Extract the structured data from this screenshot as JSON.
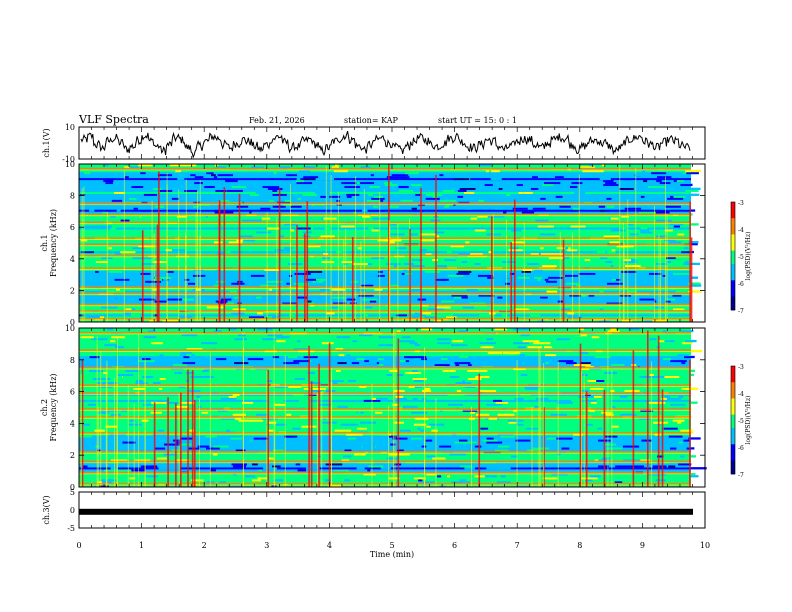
{
  "header": {
    "title": "VLF Spectra",
    "date": "Feb. 21, 2026",
    "station": "station= KAP",
    "start": "start  UT =   15: 0  : 1"
  },
  "colors": {
    "colormap": [
      "#00008b",
      "#0000ff",
      "#00bfff",
      "#00ff80",
      "#ffff00",
      "#ff8000",
      "#ff0000",
      "#ffffff"
    ]
  },
  "chart_data": [
    {
      "type": "line",
      "name": "ch1-waveform",
      "ylabel": "ch.1(V)",
      "ylim": [
        -10,
        10
      ],
      "yticks": [
        "10",
        "-10"
      ],
      "xlim": [
        0,
        10
      ],
      "values": [
        2,
        4,
        -1,
        -3,
        1,
        3,
        0,
        -4,
        -2,
        2,
        5,
        1,
        -2,
        -5,
        -1,
        3,
        2,
        -3,
        -6,
        -2,
        1,
        4,
        3,
        -1,
        -3,
        0,
        2,
        1,
        -2,
        -4,
        -1,
        3,
        4,
        0,
        -3,
        -2,
        1,
        2,
        -1,
        -5,
        -3,
        1,
        3,
        5,
        2,
        -2,
        -4,
        -1,
        2,
        3,
        0,
        -3,
        -5,
        -2,
        1,
        3,
        2,
        -1,
        -2,
        0,
        3,
        4,
        1,
        -2,
        -3,
        -1,
        2,
        1,
        -2,
        -4,
        -2,
        1,
        3,
        2,
        -1,
        -3,
        0,
        2,
        4,
        3,
        -1,
        -4,
        -2,
        1,
        2,
        0,
        -2,
        -5,
        -3,
        1,
        3,
        4,
        1,
        -1,
        -3,
        0,
        2,
        1,
        -2,
        -3
      ]
    },
    {
      "type": "heatmap",
      "name": "ch1-spectrogram",
      "ylabel": "ch.1\nFrequency (kHz)",
      "ylim": [
        0,
        10
      ],
      "yticks": [
        "0",
        "2",
        "4",
        "6",
        "8",
        "10"
      ],
      "xlim": [
        0,
        10
      ],
      "colorbar": {
        "label": "log(PSD)(V²/Hz)",
        "range": [
          -7,
          -3
        ],
        "ticks": [
          "-3",
          "-4",
          "-5",
          "-6",
          "-7"
        ]
      },
      "bright_bands_khz": [
        0.2,
        0.7,
        1.1,
        1.8,
        2.2,
        3.4,
        4.2,
        4.9,
        5.3,
        6.3,
        6.8,
        7.5,
        9.7
      ],
      "dark_bands_khz": [
        7.2,
        7.8,
        8.6,
        9.2,
        3.0,
        2.6,
        1.4
      ]
    },
    {
      "type": "heatmap",
      "name": "ch2-spectrogram",
      "ylabel": "ch.2\nFrequency (kHz)",
      "ylim": [
        0,
        10
      ],
      "yticks": [
        "0",
        "2",
        "4",
        "6",
        "8",
        "10"
      ],
      "xlim": [
        0,
        10
      ],
      "colorbar": {
        "label": "log(PSD)(V²/Hz)",
        "range": [
          -7,
          -3
        ],
        "ticks": [
          "-3",
          "-4",
          "-5",
          "-6",
          "-7"
        ]
      },
      "bright_bands_khz": [
        0.2,
        0.9,
        1.6,
        2.2,
        3.4,
        4.4,
        4.9,
        5.9,
        6.4,
        7.5,
        8.6,
        9.7
      ],
      "dark_bands_khz": [
        2.6,
        3.0,
        1.2,
        8.0
      ]
    },
    {
      "type": "line",
      "name": "ch3-signal",
      "ylabel": "ch.3(V)",
      "ylim": [
        -5,
        5
      ],
      "yticks": [
        "5",
        "0",
        "-5"
      ],
      "xlim": [
        0,
        10
      ],
      "constant_value": -0.5,
      "xlabel": "Time (min)",
      "xticks": [
        "0",
        "1",
        "2",
        "3",
        "4",
        "5",
        "6",
        "7",
        "8",
        "9",
        "10"
      ]
    }
  ]
}
